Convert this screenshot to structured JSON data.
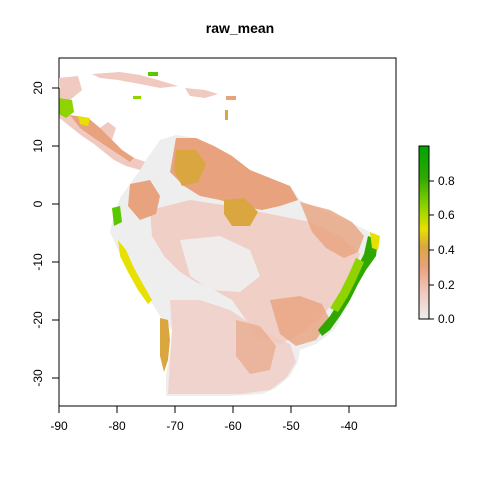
{
  "title": "raw_mean",
  "map": {
    "x_axis": {
      "ticks": [
        "-90",
        "-80",
        "-70",
        "-60",
        "-50",
        "-40"
      ]
    },
    "y_axis": {
      "ticks": [
        "20",
        "10",
        "0",
        "-10",
        "-20",
        "-30"
      ]
    },
    "extent": {
      "lon": [
        -90,
        -32
      ],
      "lat": [
        -35,
        25
      ]
    }
  },
  "legend": {
    "ticks": [
      "0.8",
      "0.6",
      "0.4",
      "0.2",
      "0.0"
    ],
    "range": [
      0,
      1
    ],
    "colors": [
      "#eeeeee",
      "#f0c9c0",
      "#e8a27d",
      "#d9a640",
      "#e7e000",
      "#8fd400",
      "#2ea800",
      "#00a600"
    ]
  }
}
